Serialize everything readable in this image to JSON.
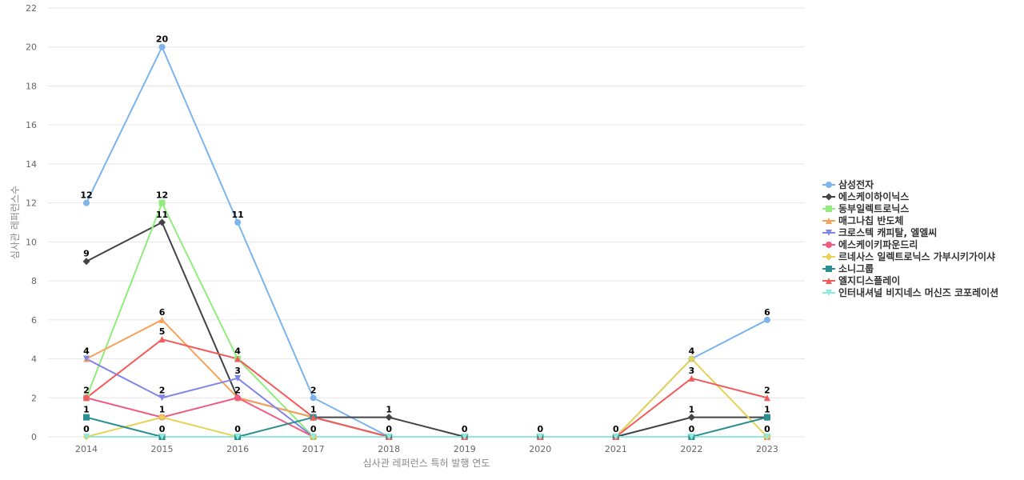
{
  "chart_data": {
    "type": "line",
    "title": "",
    "xlabel": "심사관 레퍼런스 특허 발행 연도",
    "ylabel": "심사관 레퍼런스수",
    "categories": [
      "2014",
      "2015",
      "2016",
      "2017",
      "2018",
      "2019",
      "2020",
      "2021",
      "2022",
      "2023"
    ],
    "ylim": [
      0,
      22
    ],
    "yticks": [
      0,
      2,
      4,
      6,
      8,
      10,
      12,
      14,
      16,
      18,
      20,
      22
    ],
    "grid": true,
    "legend_position": "right",
    "series": [
      {
        "name": "삼성전자",
        "color": "#7cb5ec",
        "marker": "circle",
        "values": [
          12,
          20,
          11,
          2,
          0,
          0,
          0,
          0,
          4,
          6
        ]
      },
      {
        "name": "에스케이하이닉스",
        "color": "#434348",
        "marker": "diamond",
        "values": [
          9,
          11,
          2,
          1,
          1,
          0,
          0,
          0,
          1,
          1
        ]
      },
      {
        "name": "동부일렉트로닉스",
        "color": "#90ed7d",
        "marker": "square",
        "values": [
          2,
          12,
          4,
          0,
          0,
          0,
          0,
          0,
          0,
          0
        ]
      },
      {
        "name": "매그나칩 반도체",
        "color": "#f7a35c",
        "marker": "triangle",
        "values": [
          4,
          6,
          2,
          1,
          0,
          0,
          0,
          0,
          0,
          0
        ]
      },
      {
        "name": "크로스텍 캐피탈, 엘엘씨",
        "color": "#8085e9",
        "marker": "triangle-down",
        "values": [
          4,
          2,
          3,
          0,
          0,
          0,
          0,
          0,
          0,
          0
        ]
      },
      {
        "name": "에스케이키파운드리",
        "color": "#f15c80",
        "marker": "circle",
        "values": [
          2,
          1,
          2,
          0,
          0,
          0,
          0,
          0,
          0,
          0
        ]
      },
      {
        "name": "르네사스 일렉트로닉스 가부시키가이샤",
        "color": "#e4d354",
        "marker": "diamond",
        "values": [
          0,
          1,
          0,
          0,
          0,
          0,
          0,
          0,
          4,
          0
        ]
      },
      {
        "name": "소니그룹",
        "color": "#2b908f",
        "marker": "square",
        "values": [
          1,
          0,
          0,
          1,
          0,
          0,
          0,
          0,
          0,
          1
        ]
      },
      {
        "name": "엘지디스플레이",
        "color": "#f45b5b",
        "marker": "triangle",
        "values": [
          2,
          5,
          4,
          1,
          0,
          0,
          0,
          0,
          3,
          2
        ]
      },
      {
        "name": "인터내셔널 비지네스 머신즈 코포레이션",
        "color": "#91e8e1",
        "marker": "triangle-down",
        "values": [
          0,
          0,
          0,
          0,
          0,
          0,
          0,
          0,
          0,
          0
        ]
      }
    ],
    "data_labels": [
      {
        "category": "2014",
        "value": 12,
        "text": "12"
      },
      {
        "category": "2014",
        "value": 9,
        "text": "9"
      },
      {
        "category": "2014",
        "value": 4,
        "text": "4"
      },
      {
        "category": "2014",
        "value": 2,
        "text": "2"
      },
      {
        "category": "2014",
        "value": 1,
        "text": "1"
      },
      {
        "category": "2014",
        "value": 0,
        "text": "0"
      },
      {
        "category": "2015",
        "value": 20,
        "text": "20"
      },
      {
        "category": "2015",
        "value": 12,
        "text": "12"
      },
      {
        "category": "2015",
        "value": 11,
        "text": "11"
      },
      {
        "category": "2015",
        "value": 6,
        "text": "6"
      },
      {
        "category": "2015",
        "value": 5,
        "text": "5"
      },
      {
        "category": "2015",
        "value": 2,
        "text": "2"
      },
      {
        "category": "2015",
        "value": 1,
        "text": "1"
      },
      {
        "category": "2015",
        "value": 0,
        "text": "0"
      },
      {
        "category": "2016",
        "value": 11,
        "text": "11"
      },
      {
        "category": "2016",
        "value": 4,
        "text": "4"
      },
      {
        "category": "2016",
        "value": 3,
        "text": "3"
      },
      {
        "category": "2016",
        "value": 2,
        "text": "2"
      },
      {
        "category": "2016",
        "value": 0,
        "text": "0"
      },
      {
        "category": "2017",
        "value": 2,
        "text": "2"
      },
      {
        "category": "2017",
        "value": 1,
        "text": "1"
      },
      {
        "category": "2017",
        "value": 0,
        "text": "0"
      },
      {
        "category": "2018",
        "value": 1,
        "text": "1"
      },
      {
        "category": "2018",
        "value": 0,
        "text": "0"
      },
      {
        "category": "2019",
        "value": 0,
        "text": "0"
      },
      {
        "category": "2020",
        "value": 0,
        "text": "0"
      },
      {
        "category": "2021",
        "value": 0,
        "text": "0"
      },
      {
        "category": "2022",
        "value": 4,
        "text": "4"
      },
      {
        "category": "2022",
        "value": 3,
        "text": "3"
      },
      {
        "category": "2022",
        "value": 1,
        "text": "1"
      },
      {
        "category": "2022",
        "value": 0,
        "text": "0"
      },
      {
        "category": "2023",
        "value": 6,
        "text": "6"
      },
      {
        "category": "2023",
        "value": 2,
        "text": "2"
      },
      {
        "category": "2023",
        "value": 1,
        "text": "1"
      },
      {
        "category": "2023",
        "value": 0,
        "text": "0"
      }
    ]
  }
}
